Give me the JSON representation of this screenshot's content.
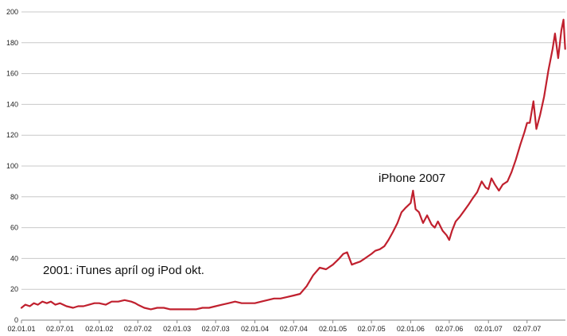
{
  "chart_data": {
    "type": "line",
    "title": "",
    "xlabel": "",
    "ylabel": "",
    "ylim": [
      0,
      200
    ],
    "y_ticks": [
      0,
      20,
      40,
      60,
      80,
      100,
      120,
      140,
      160,
      180,
      200
    ],
    "x_tick_labels": [
      "02.01.01",
      "02.07.01",
      "02.01.02",
      "02.07.02",
      "02.01.03",
      "02.07.03",
      "02.01.04",
      "02.07.04",
      "02.01.05",
      "02.07.05",
      "02.01.06",
      "02.07.06",
      "02.01.07",
      "02.07.07"
    ],
    "grid": true,
    "legend": "none",
    "colors": {
      "series": "#c0202e",
      "grid": "#c8c8c8",
      "axis": "#868686"
    },
    "series": [
      {
        "x": [
          "2001-01-02",
          "2001-01-20",
          "2001-02-10",
          "2001-03-01",
          "2001-03-20",
          "2001-04-10",
          "2001-05-01",
          "2001-05-20",
          "2001-06-10",
          "2001-07-02",
          "2001-08-01",
          "2001-09-01",
          "2001-09-25",
          "2001-10-20",
          "2001-11-15",
          "2001-12-10",
          "2002-01-02",
          "2002-02-01",
          "2002-03-01",
          "2002-04-01",
          "2002-05-01",
          "2002-06-01",
          "2002-06-20",
          "2002-07-02",
          "2002-08-01",
          "2002-09-01",
          "2002-10-01",
          "2002-11-01",
          "2002-12-01",
          "2003-01-02",
          "2003-02-01",
          "2003-03-01",
          "2003-04-01",
          "2003-05-01",
          "2003-06-01",
          "2003-07-02",
          "2003-08-01",
          "2003-09-01",
          "2003-10-01",
          "2003-11-01",
          "2003-12-01",
          "2004-01-02",
          "2004-02-01",
          "2004-03-01",
          "2004-04-01",
          "2004-05-01",
          "2004-06-01",
          "2004-07-02",
          "2004-08-01",
          "2004-09-01",
          "2004-10-01",
          "2004-11-01",
          "2004-12-01",
          "2005-01-02",
          "2005-02-01",
          "2005-02-20",
          "2005-03-10",
          "2005-04-01",
          "2005-04-20",
          "2005-05-10",
          "2005-06-01",
          "2005-07-02",
          "2005-07-20",
          "2005-08-10",
          "2005-09-01",
          "2005-09-20",
          "2005-10-10",
          "2005-11-01",
          "2005-11-20",
          "2005-12-10",
          "2006-01-02",
          "2006-01-13",
          "2006-01-25",
          "2006-02-10",
          "2006-03-01",
          "2006-03-20",
          "2006-04-10",
          "2006-04-25",
          "2006-05-10",
          "2006-06-01",
          "2006-06-20",
          "2006-07-02",
          "2006-07-15",
          "2006-08-01",
          "2006-08-20",
          "2006-09-10",
          "2006-10-01",
          "2006-10-20",
          "2006-11-10",
          "2006-12-01",
          "2006-12-20",
          "2007-01-02",
          "2007-01-16",
          "2007-02-01",
          "2007-02-20",
          "2007-03-10",
          "2007-04-01",
          "2007-04-20",
          "2007-05-10",
          "2007-06-01",
          "2007-06-20",
          "2007-07-02",
          "2007-07-15",
          "2007-08-01",
          "2007-08-15",
          "2007-09-01",
          "2007-09-20",
          "2007-10-10",
          "2007-10-30",
          "2007-11-10",
          "2007-11-25",
          "2007-12-10",
          "2007-12-20",
          "2007-12-28"
        ],
        "y": [
          8,
          10,
          9,
          11,
          10,
          12,
          11,
          12,
          10,
          11,
          9,
          8,
          9,
          9,
          10,
          11,
          11,
          10,
          12,
          12,
          13,
          12,
          11,
          10,
          8,
          7,
          8,
          8,
          7,
          7,
          7,
          7,
          7,
          8,
          8,
          9,
          10,
          11,
          12,
          11,
          11,
          11,
          12,
          13,
          14,
          14,
          15,
          16,
          17,
          22,
          29,
          34,
          33,
          36,
          40,
          43,
          44,
          36,
          37,
          38,
          40,
          43,
          45,
          46,
          48,
          52,
          57,
          63,
          70,
          73,
          76,
          84,
          72,
          70,
          63,
          68,
          62,
          60,
          64,
          58,
          55,
          52,
          58,
          64,
          67,
          71,
          75,
          79,
          83,
          90,
          86,
          85,
          92,
          88,
          84,
          88,
          90,
          96,
          104,
          114,
          122,
          128,
          128,
          142,
          124,
          133,
          145,
          162,
          176,
          186,
          170,
          188,
          195,
          176
        ]
      }
    ]
  },
  "annotations": {
    "itunes_ipod": "2001: iTunes  apríl og iPod okt.",
    "iphone": "iPhone 2007"
  }
}
